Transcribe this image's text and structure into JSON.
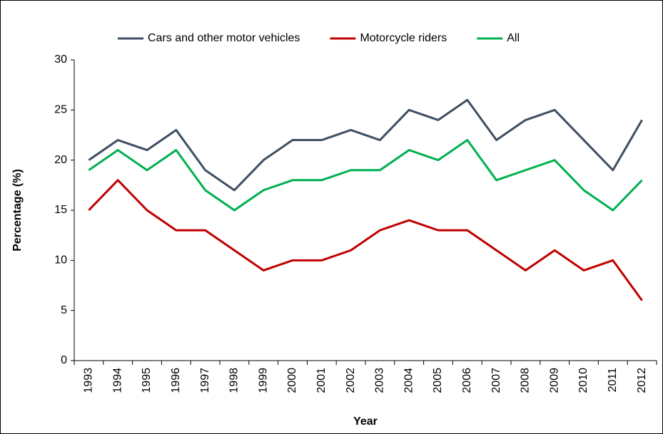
{
  "chart_data": {
    "type": "line",
    "x_label": "Year",
    "y_label": "Percentage (%)",
    "categories": [
      "1993",
      "1994",
      "1995",
      "1996",
      "1997",
      "1998",
      "1999",
      "2000",
      "2001",
      "2002",
      "2003",
      "2004",
      "2005",
      "2006",
      "2007",
      "2008",
      "2009",
      "2010",
      "2011",
      "2012"
    ],
    "series": [
      {
        "name": "Cars and other motor vehicles",
        "color": "#3f4e62",
        "values": [
          20,
          22,
          21,
          23,
          19,
          17,
          20,
          22,
          22,
          23,
          22,
          25,
          24,
          26,
          22,
          24,
          25,
          22,
          19,
          24
        ]
      },
      {
        "name": "Motorcycle riders",
        "color": "#c00000",
        "values": [
          15,
          18,
          15,
          13,
          13,
          11,
          9,
          10,
          10,
          11,
          13,
          14,
          13,
          13,
          11,
          9,
          11,
          9,
          10,
          6
        ]
      },
      {
        "name": "All",
        "color": "#00b050",
        "values": [
          19,
          21,
          19,
          21,
          17,
          15,
          17,
          18,
          18,
          19,
          19,
          21,
          20,
          22,
          18,
          19,
          20,
          17,
          15,
          18
        ]
      }
    ],
    "ylim": [
      0,
      30
    ],
    "yticks": [
      0,
      5,
      10,
      15,
      20,
      25,
      30
    ],
    "grid": false,
    "legend": "top"
  }
}
